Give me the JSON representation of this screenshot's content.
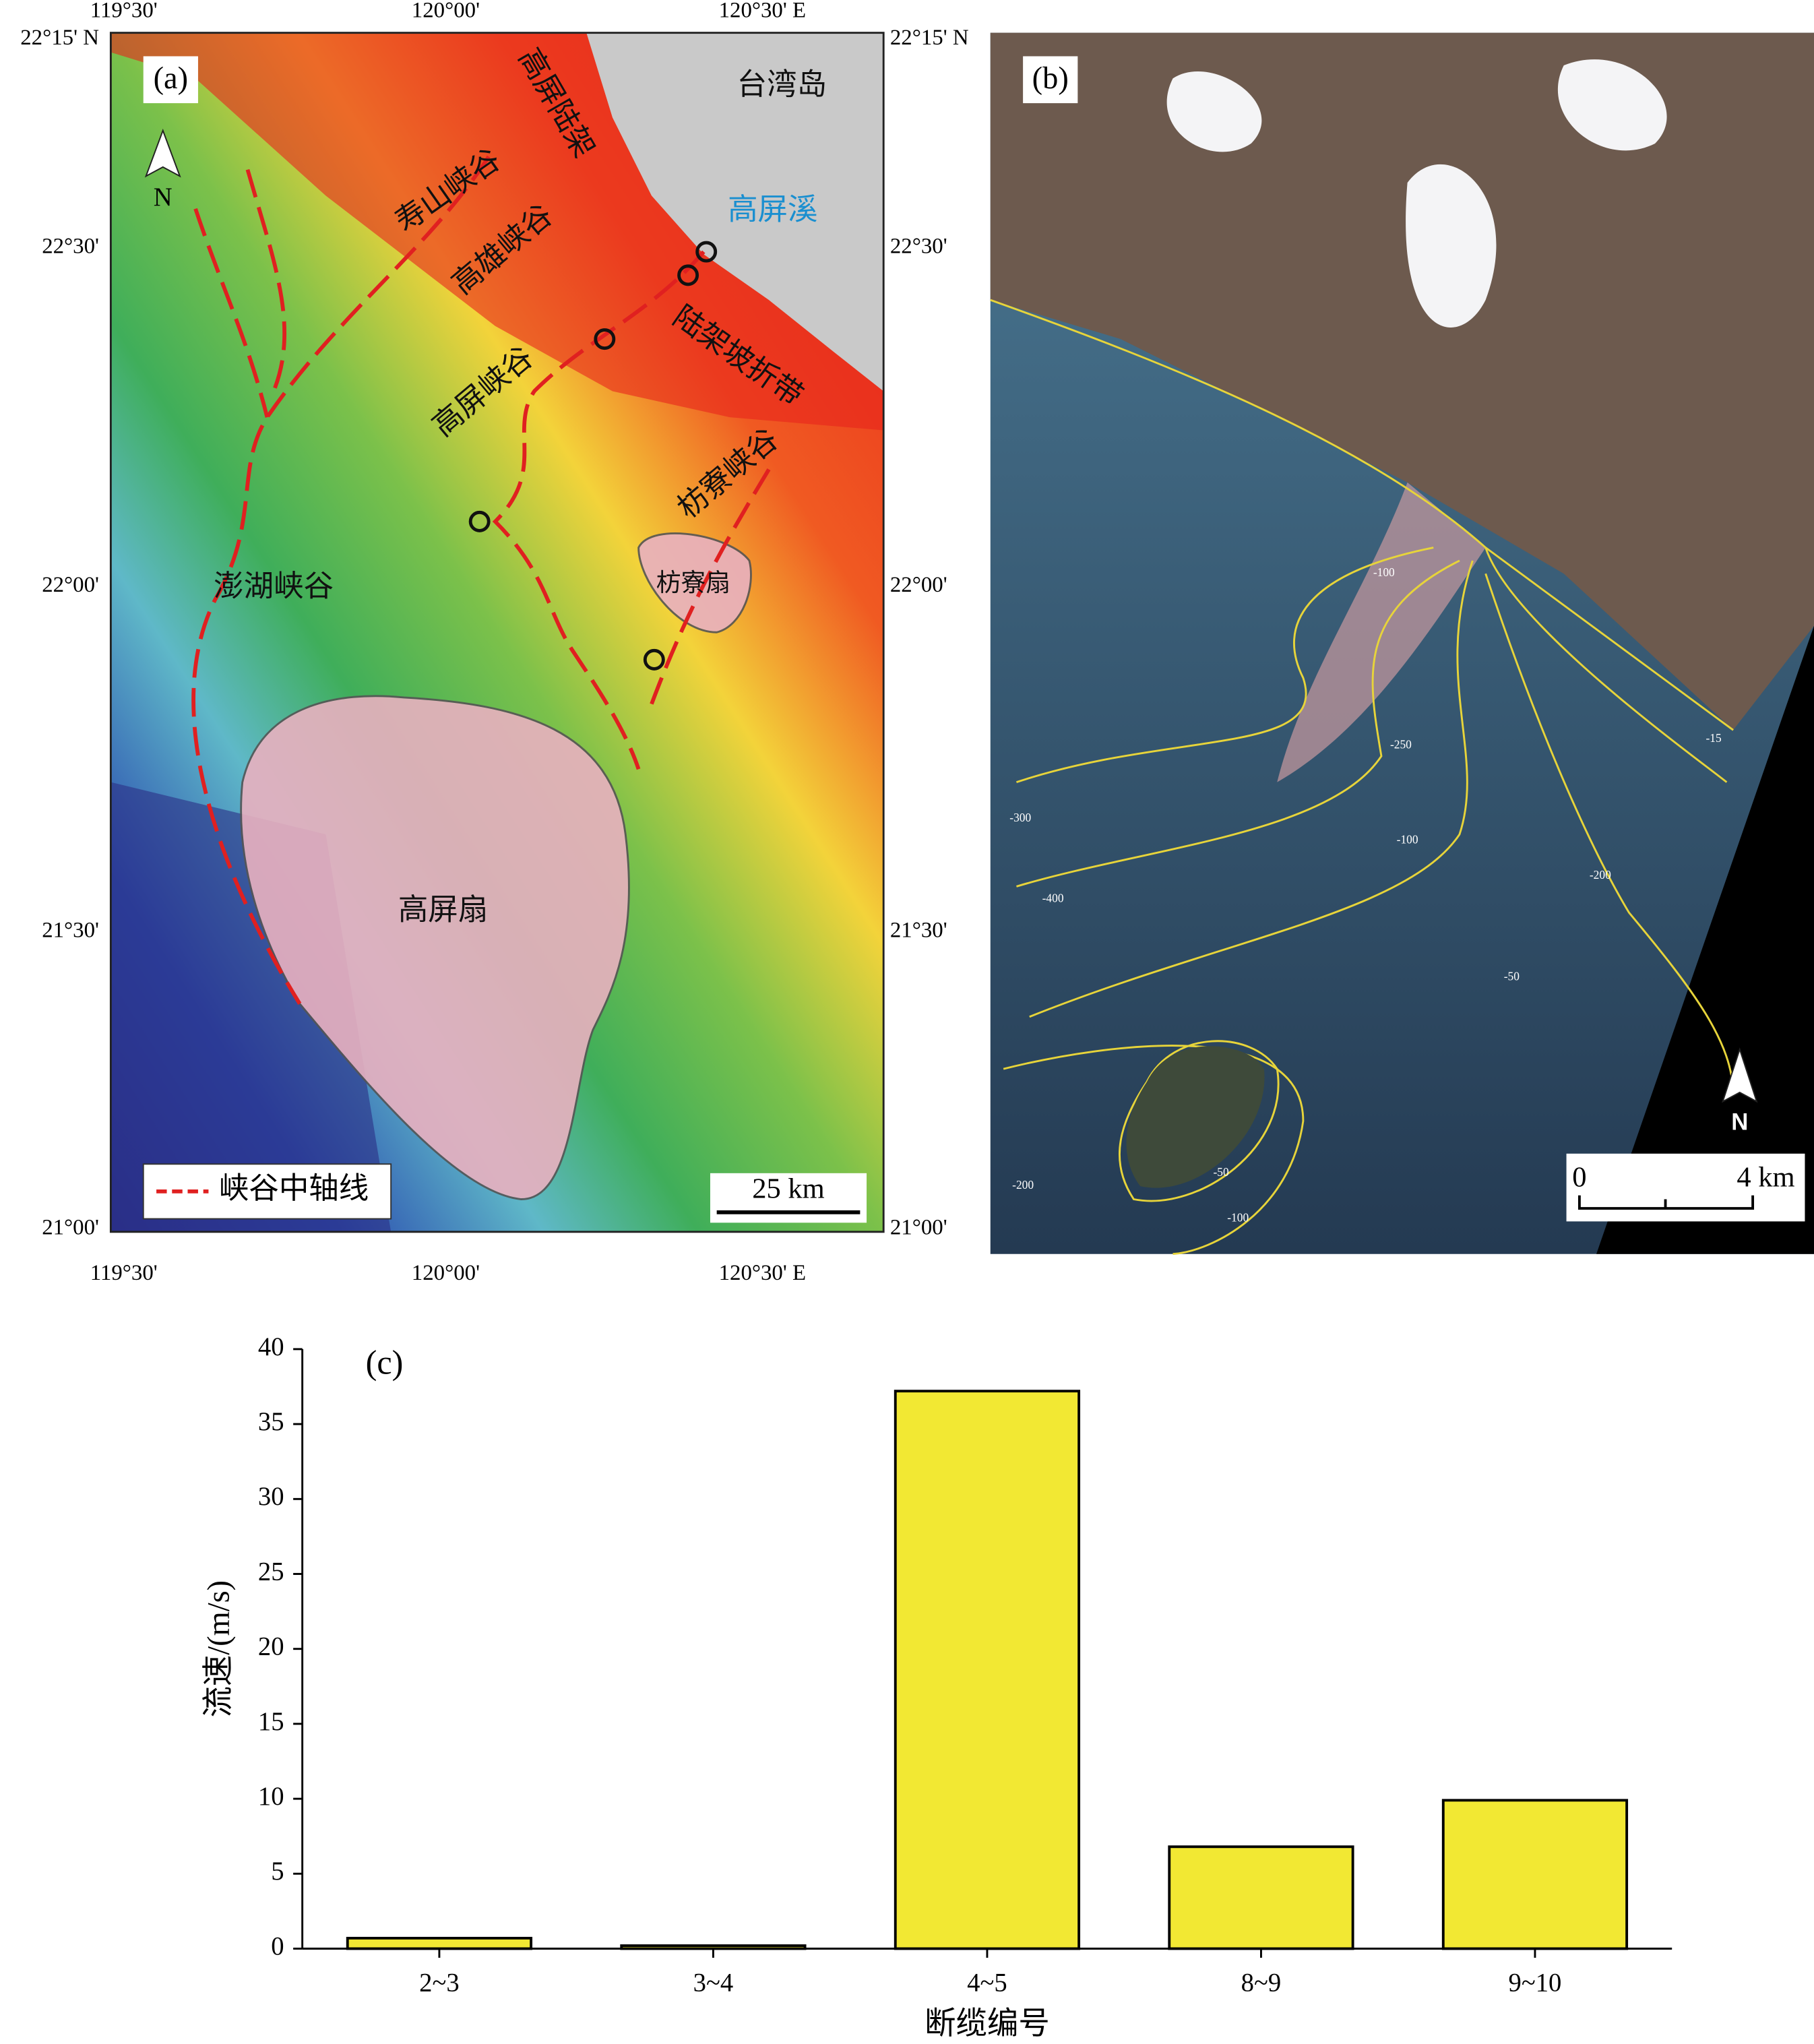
{
  "map_a": {
    "panel_label": "(a)",
    "x_labels": [
      "119°30'",
      "120°00'",
      "120°30' E"
    ],
    "y_labels": [
      "22°15' N",
      "22°30'",
      "22°00'",
      "21°30'",
      "21°00'"
    ],
    "places": [
      "台湾岛",
      "高屏溪",
      "高屏陆架",
      "寿山峡谷",
      "高雄峡谷",
      "高屏峡谷",
      "陆架坡折带",
      "枋寮峡谷",
      "枋寮扇",
      "澎湖峡谷",
      "高屏扇"
    ],
    "north": "N",
    "legend": "峡谷中轴线",
    "scale": "25 km"
  },
  "map_b": {
    "panel_label": "(b)",
    "north": "N",
    "scale_labels": [
      "0",
      "4 km"
    ],
    "contour_labels": [
      "-100",
      "-15",
      "-250",
      "-100",
      "-200",
      "-300",
      "-400",
      "-50",
      "-200",
      "-50",
      "-100"
    ]
  },
  "chart_data": {
    "type": "bar",
    "annotation": "(c)",
    "x_label": "断缆编号",
    "y_label": "流速/(m/s)",
    "categories": [
      "2~3",
      "3~4",
      "4~5",
      "8~9",
      "9~10"
    ],
    "values": [
      0.7,
      0.2,
      37.2,
      6.8,
      9.9
    ],
    "color": "#f2e833",
    "ylim": [
      0,
      40
    ],
    "yticks": [
      0,
      5,
      10,
      15,
      20,
      25,
      30,
      35,
      40
    ],
    "grid": false
  }
}
